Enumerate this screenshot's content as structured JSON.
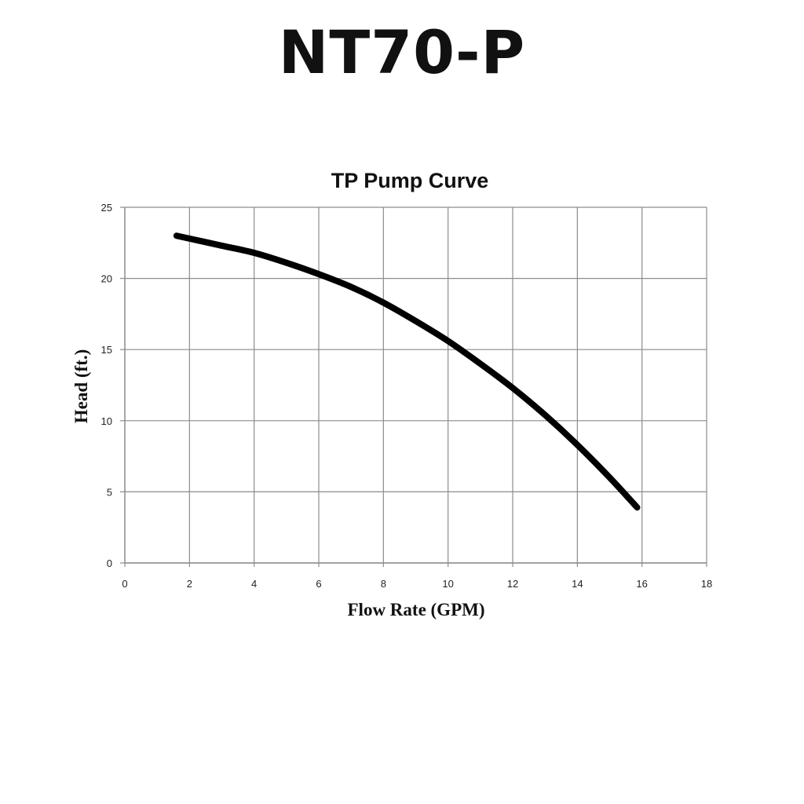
{
  "page": {
    "title": "NT70-P"
  },
  "chart_data": {
    "type": "line",
    "title": "TP Pump Curve",
    "xlabel": "Flow Rate (GPM)",
    "ylabel": "Head (ft.)",
    "xlim": [
      0,
      18
    ],
    "ylim": [
      0,
      25
    ],
    "xticks": [
      0,
      2,
      4,
      6,
      8,
      10,
      12,
      14,
      16,
      18
    ],
    "yticks": [
      0,
      5,
      10,
      15,
      20,
      25
    ],
    "grid": true,
    "legend": "none",
    "colors": {
      "line": "#000000",
      "grid": "#8c8c8c"
    },
    "series": [
      {
        "x": [
          1.6,
          2,
          3,
          4,
          5,
          6,
          7,
          8,
          9,
          10,
          11,
          12,
          13,
          14,
          15,
          15.85
        ],
        "y": [
          23.0,
          22.8,
          22.3,
          21.8,
          21.1,
          20.3,
          19.4,
          18.3,
          17.0,
          15.6,
          14.0,
          12.3,
          10.4,
          8.3,
          6.0,
          3.9
        ]
      }
    ]
  }
}
